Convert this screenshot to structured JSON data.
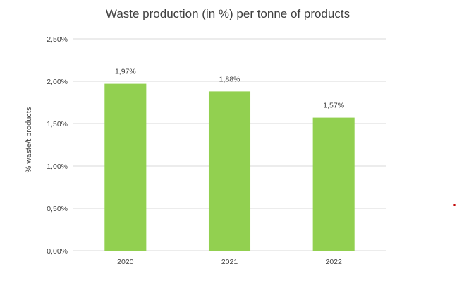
{
  "chart_data": {
    "type": "bar",
    "title": "Waste production (in %) per tonne of products",
    "xlabel": "",
    "ylabel": "% waste/t products",
    "categories": [
      "2020",
      "2021",
      "2022"
    ],
    "values": [
      1.97,
      1.88,
      1.57
    ],
    "data_labels": [
      "1,97%",
      "1,88%",
      "1,57%"
    ],
    "ylim": [
      0,
      2.5
    ],
    "yticks": [
      0,
      0.5,
      1.0,
      1.5,
      2.0,
      2.5
    ],
    "ytick_labels": [
      "0,00%",
      "0,50%",
      "1,00%",
      "1,50%",
      "2,00%",
      "2,50%"
    ],
    "grid": true,
    "legend": "none",
    "colors": {
      "bar": "#92d050",
      "grid": "#d9d9d9",
      "text": "#404040",
      "marker": "#c00000"
    }
  }
}
